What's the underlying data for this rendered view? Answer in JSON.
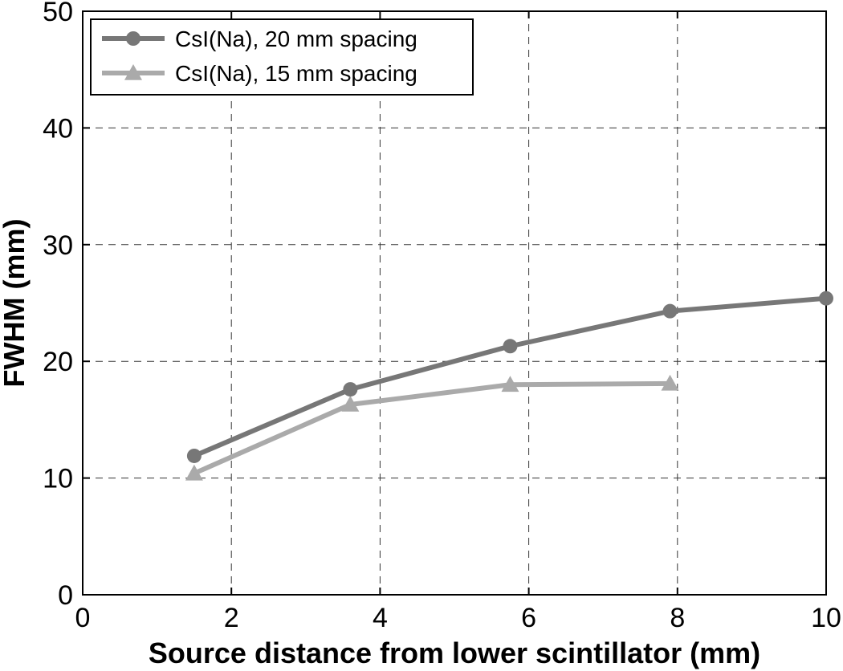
{
  "chart_data": {
    "type": "line",
    "title": "",
    "xlabel": "Source distance from lower scintillator (mm)",
    "ylabel": "FWHM (mm)",
    "xlim": [
      0,
      10
    ],
    "ylim": [
      0,
      50
    ],
    "xticks": [
      0,
      2,
      4,
      6,
      8,
      10
    ],
    "yticks": [
      0,
      10,
      20,
      30,
      40,
      50
    ],
    "grid": true,
    "legend_position": "top-left",
    "series": [
      {
        "name": "CsI(Na), 20 mm spacing",
        "marker": "circle",
        "color": "#777777",
        "x": [
          1.5,
          3.6,
          5.75,
          7.9,
          10.0
        ],
        "y": [
          11.9,
          17.6,
          21.3,
          24.3,
          25.4
        ]
      },
      {
        "name": "CsI(Na), 15 mm spacing",
        "marker": "triangle",
        "color": "#aaaaaa",
        "x": [
          1.5,
          3.6,
          5.75,
          7.9
        ],
        "y": [
          10.4,
          16.3,
          18.0,
          18.1
        ]
      }
    ]
  }
}
